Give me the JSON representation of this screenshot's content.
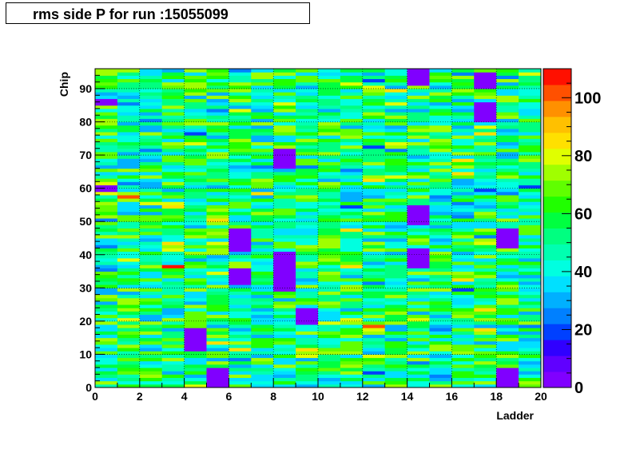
{
  "chart_data": {
    "type": "heatmap",
    "title": "rms side P for run :15055099",
    "xlabel": "Ladder",
    "ylabel": "Chip",
    "xlim": [
      0,
      20
    ],
    "ylim": [
      0,
      96
    ],
    "zlim": [
      0,
      110
    ],
    "x_ticks": [
      "0",
      "2",
      "4",
      "6",
      "8",
      "10",
      "12",
      "14",
      "16",
      "18",
      "20"
    ],
    "y_ticks": [
      "0",
      "10",
      "20",
      "30",
      "40",
      "50",
      "60",
      "70",
      "80",
      "90"
    ],
    "z_ticks": [
      "0",
      "20",
      "40",
      "60",
      "80",
      "100"
    ],
    "grid": true,
    "n_ladders": 20,
    "n_chips": 96,
    "palette": [
      "#8000ff",
      "#6000ff",
      "#3000ff",
      "#0040ff",
      "#0080ff",
      "#00b0ff",
      "#00e0ff",
      "#00ffe0",
      "#00ffb0",
      "#00ff80",
      "#00ff40",
      "#20ff00",
      "#60ff00",
      "#a0ff00",
      "#e0ff00",
      "#ffe000",
      "#ffc000",
      "#ff9000",
      "#ff5000",
      "#ff1000"
    ],
    "hot_cells": [
      {
        "ladder": 1,
        "chip": 57,
        "value": 104
      },
      {
        "ladder": 3,
        "chip": 36,
        "value": 106
      },
      {
        "ladder": 12,
        "chip": 18,
        "value": 103
      }
    ],
    "cold_regions": [
      {
        "ladder": 4,
        "chips": [
          11,
          17
        ],
        "value": 5
      },
      {
        "ladder": 5,
        "chips": [
          0,
          5
        ],
        "value": 5
      },
      {
        "ladder": 6,
        "chips": [
          41,
          47
        ],
        "value": 5
      },
      {
        "ladder": 6,
        "chips": [
          31,
          35
        ],
        "value": 5
      },
      {
        "ladder": 8,
        "chips": [
          66,
          71
        ],
        "value": 5
      },
      {
        "ladder": 8,
        "chips": [
          29,
          40
        ],
        "value": 5
      },
      {
        "ladder": 9,
        "chips": [
          19,
          23
        ],
        "value": 5
      },
      {
        "ladder": 14,
        "chips": [
          91,
          95
        ],
        "value": 5
      },
      {
        "ladder": 14,
        "chips": [
          49,
          54
        ],
        "value": 5
      },
      {
        "ladder": 14,
        "chips": [
          36,
          41
        ],
        "value": 5
      },
      {
        "ladder": 17,
        "chips": [
          80,
          85
        ],
        "value": 5
      },
      {
        "ladder": 17,
        "chips": [
          90,
          94
        ],
        "value": 5
      },
      {
        "ladder": 18,
        "chips": [
          42,
          47
        ],
        "value": 5
      },
      {
        "ladder": 18,
        "chips": [
          0,
          5
        ],
        "value": 5
      },
      {
        "ladder": 0,
        "chips": [
          59,
          60
        ],
        "value": 5
      },
      {
        "ladder": 0,
        "chips": [
          85,
          86
        ],
        "value": 5
      }
    ],
    "typical_value_range": [
      30,
      75
    ]
  }
}
